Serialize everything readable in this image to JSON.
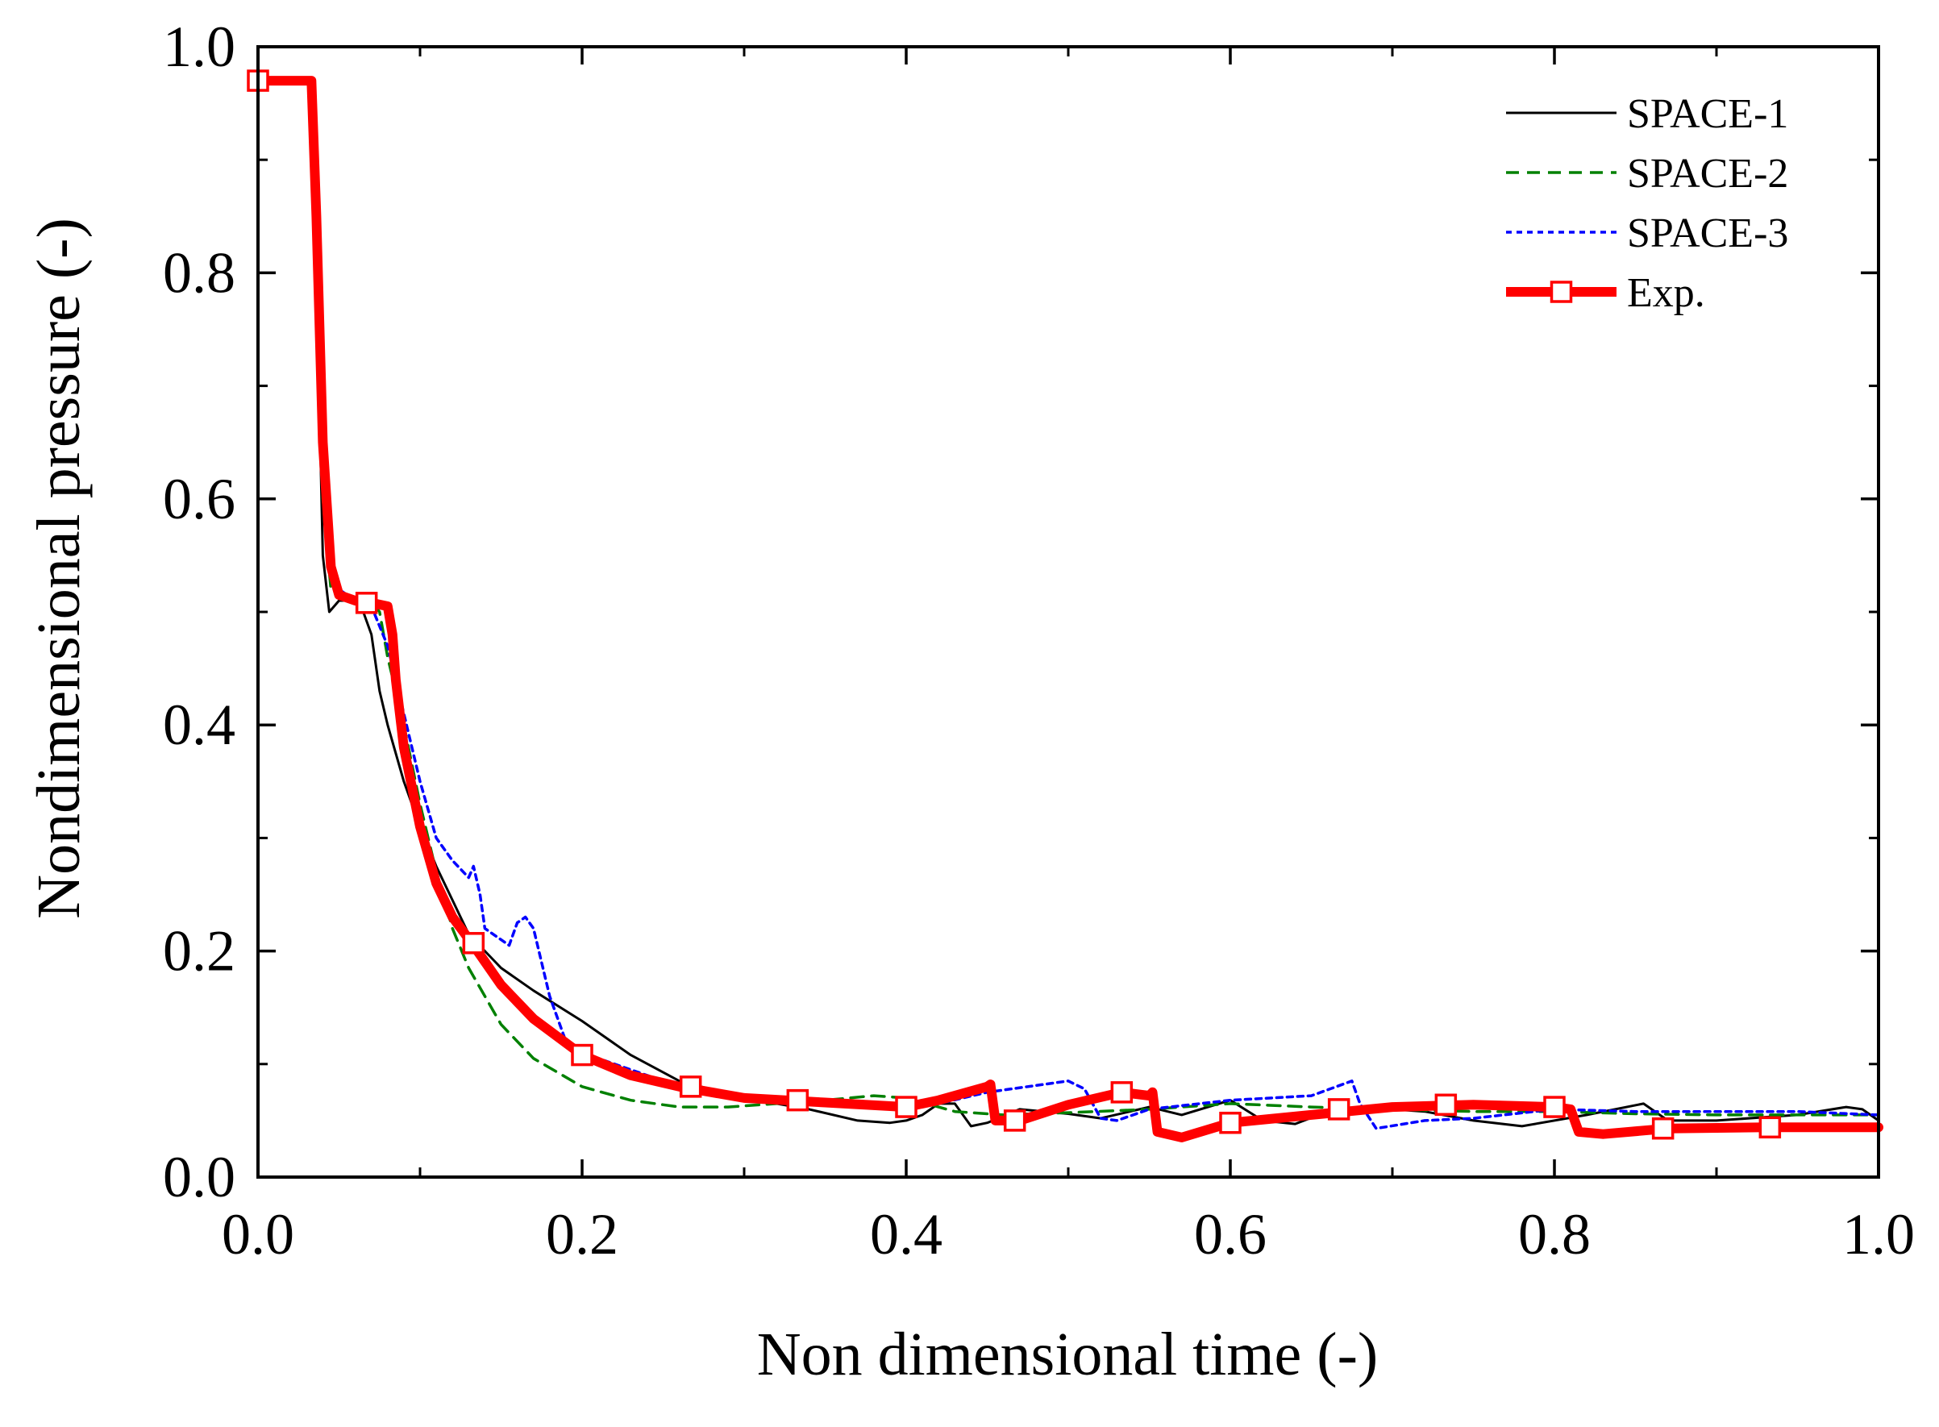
{
  "chart_data": {
    "type": "line",
    "title": "",
    "xlabel": "Non dimensional time (-)",
    "ylabel": "Nondimensional pressure (-)",
    "xlim": [
      0.0,
      1.0
    ],
    "ylim": [
      0.0,
      1.0
    ],
    "xticks": [
      0.0,
      0.2,
      0.4,
      0.6,
      0.8,
      1.0
    ],
    "yticks": [
      0.0,
      0.2,
      0.4,
      0.6,
      0.8,
      1.0
    ],
    "xtick_labels": [
      "0.0",
      "0.2",
      "0.4",
      "0.6",
      "0.8",
      "1.0"
    ],
    "ytick_labels": [
      "0.0",
      "0.2",
      "0.4",
      "0.6",
      "0.8",
      "1.0"
    ],
    "legend_position": "top-right",
    "series": [
      {
        "name": "SPACE-1",
        "color": "#000000",
        "style": "solid",
        "x": [
          0.0,
          0.032,
          0.036,
          0.04,
          0.044,
          0.05,
          0.06,
          0.065,
          0.07,
          0.075,
          0.08,
          0.09,
          0.1,
          0.11,
          0.12,
          0.13,
          0.15,
          0.17,
          0.2,
          0.23,
          0.26,
          0.3,
          0.34,
          0.37,
          0.39,
          0.4,
          0.41,
          0.42,
          0.43,
          0.44,
          0.45,
          0.47,
          0.5,
          0.52,
          0.55,
          0.57,
          0.6,
          0.62,
          0.64,
          0.66,
          0.7,
          0.72,
          0.75,
          0.78,
          0.82,
          0.855,
          0.87,
          0.9,
          0.95,
          0.98,
          0.99,
          1.0
        ],
        "y": [
          0.97,
          0.97,
          0.8,
          0.55,
          0.5,
          0.51,
          0.51,
          0.5,
          0.48,
          0.43,
          0.4,
          0.35,
          0.31,
          0.275,
          0.245,
          0.215,
          0.185,
          0.165,
          0.138,
          0.108,
          0.085,
          0.07,
          0.06,
          0.05,
          0.048,
          0.05,
          0.055,
          0.065,
          0.065,
          0.045,
          0.048,
          0.06,
          0.056,
          0.052,
          0.062,
          0.055,
          0.068,
          0.05,
          0.047,
          0.058,
          0.06,
          0.058,
          0.05,
          0.045,
          0.055,
          0.065,
          0.05,
          0.05,
          0.055,
          0.062,
          0.06,
          0.05
        ]
      },
      {
        "name": "SPACE-2",
        "color": "#008000",
        "style": "dashed",
        "x": [
          0.0,
          0.032,
          0.036,
          0.04,
          0.045,
          0.05,
          0.06,
          0.07,
          0.075,
          0.08,
          0.09,
          0.1,
          0.11,
          0.12,
          0.13,
          0.15,
          0.17,
          0.2,
          0.23,
          0.26,
          0.29,
          0.32,
          0.35,
          0.38,
          0.4,
          0.43,
          0.46,
          0.5,
          0.55,
          0.6,
          0.65,
          0.7,
          0.75,
          0.8,
          0.85,
          0.9,
          0.95,
          1.0
        ],
        "y": [
          0.97,
          0.97,
          0.8,
          0.6,
          0.52,
          0.515,
          0.51,
          0.51,
          0.5,
          0.46,
          0.4,
          0.33,
          0.27,
          0.22,
          0.185,
          0.135,
          0.105,
          0.08,
          0.068,
          0.062,
          0.062,
          0.065,
          0.068,
          0.072,
          0.07,
          0.058,
          0.055,
          0.057,
          0.06,
          0.065,
          0.062,
          0.06,
          0.058,
          0.058,
          0.056,
          0.055,
          0.055,
          0.055
        ]
      },
      {
        "name": "SPACE-3",
        "color": "#0000ff",
        "style": "dotted",
        "x": [
          0.0,
          0.032,
          0.036,
          0.04,
          0.045,
          0.05,
          0.06,
          0.07,
          0.08,
          0.09,
          0.1,
          0.11,
          0.12,
          0.13,
          0.133,
          0.137,
          0.14,
          0.15,
          0.155,
          0.16,
          0.165,
          0.17,
          0.18,
          0.19,
          0.2,
          0.22,
          0.25,
          0.3,
          0.35,
          0.4,
          0.42,
          0.45,
          0.5,
          0.51,
          0.52,
          0.53,
          0.55,
          0.6,
          0.65,
          0.675,
          0.68,
          0.69,
          0.72,
          0.75,
          0.8,
          0.85,
          0.9,
          0.95,
          1.0
        ],
        "y": [
          0.97,
          0.97,
          0.8,
          0.65,
          0.55,
          0.52,
          0.51,
          0.505,
          0.47,
          0.41,
          0.35,
          0.3,
          0.28,
          0.265,
          0.275,
          0.25,
          0.22,
          0.21,
          0.205,
          0.225,
          0.23,
          0.22,
          0.16,
          0.12,
          0.11,
          0.1,
          0.085,
          0.07,
          0.065,
          0.06,
          0.065,
          0.075,
          0.085,
          0.078,
          0.052,
          0.05,
          0.06,
          0.068,
          0.072,
          0.085,
          0.065,
          0.043,
          0.05,
          0.052,
          0.06,
          0.058,
          0.058,
          0.058,
          0.055
        ]
      },
      {
        "name": "Exp.",
        "color": "#ff0000",
        "style": "solid-thick",
        "marker": "square",
        "x": [
          0.0,
          0.033,
          0.036,
          0.04,
          0.045,
          0.05,
          0.06,
          0.07,
          0.08,
          0.083,
          0.085,
          0.09,
          0.1,
          0.11,
          0.12,
          0.133,
          0.15,
          0.17,
          0.2,
          0.23,
          0.26,
          0.3,
          0.35,
          0.4,
          0.42,
          0.45,
          0.452,
          0.455,
          0.47,
          0.5,
          0.533,
          0.55,
          0.552,
          0.555,
          0.57,
          0.6,
          0.65,
          0.7,
          0.75,
          0.8,
          0.81,
          0.815,
          0.83,
          0.87,
          0.93,
          1.0
        ],
        "y": [
          0.97,
          0.97,
          0.85,
          0.65,
          0.54,
          0.515,
          0.51,
          0.508,
          0.505,
          0.48,
          0.44,
          0.38,
          0.31,
          0.26,
          0.23,
          0.205,
          0.17,
          0.14,
          0.108,
          0.09,
          0.08,
          0.07,
          0.066,
          0.062,
          0.068,
          0.08,
          0.082,
          0.05,
          0.05,
          0.064,
          0.075,
          0.072,
          0.075,
          0.04,
          0.035,
          0.048,
          0.055,
          0.062,
          0.064,
          0.062,
          0.06,
          0.04,
          0.038,
          0.043,
          0.044,
          0.044
        ],
        "marker_x": [
          0.0,
          0.067,
          0.133,
          0.2,
          0.267,
          0.333,
          0.4,
          0.467,
          0.533,
          0.6,
          0.667,
          0.733,
          0.8,
          0.867,
          0.933
        ],
        "marker_y": [
          0.97,
          0.508,
          0.207,
          0.108,
          0.08,
          0.068,
          0.062,
          0.05,
          0.075,
          0.048,
          0.06,
          0.064,
          0.062,
          0.043,
          0.044
        ]
      }
    ]
  }
}
